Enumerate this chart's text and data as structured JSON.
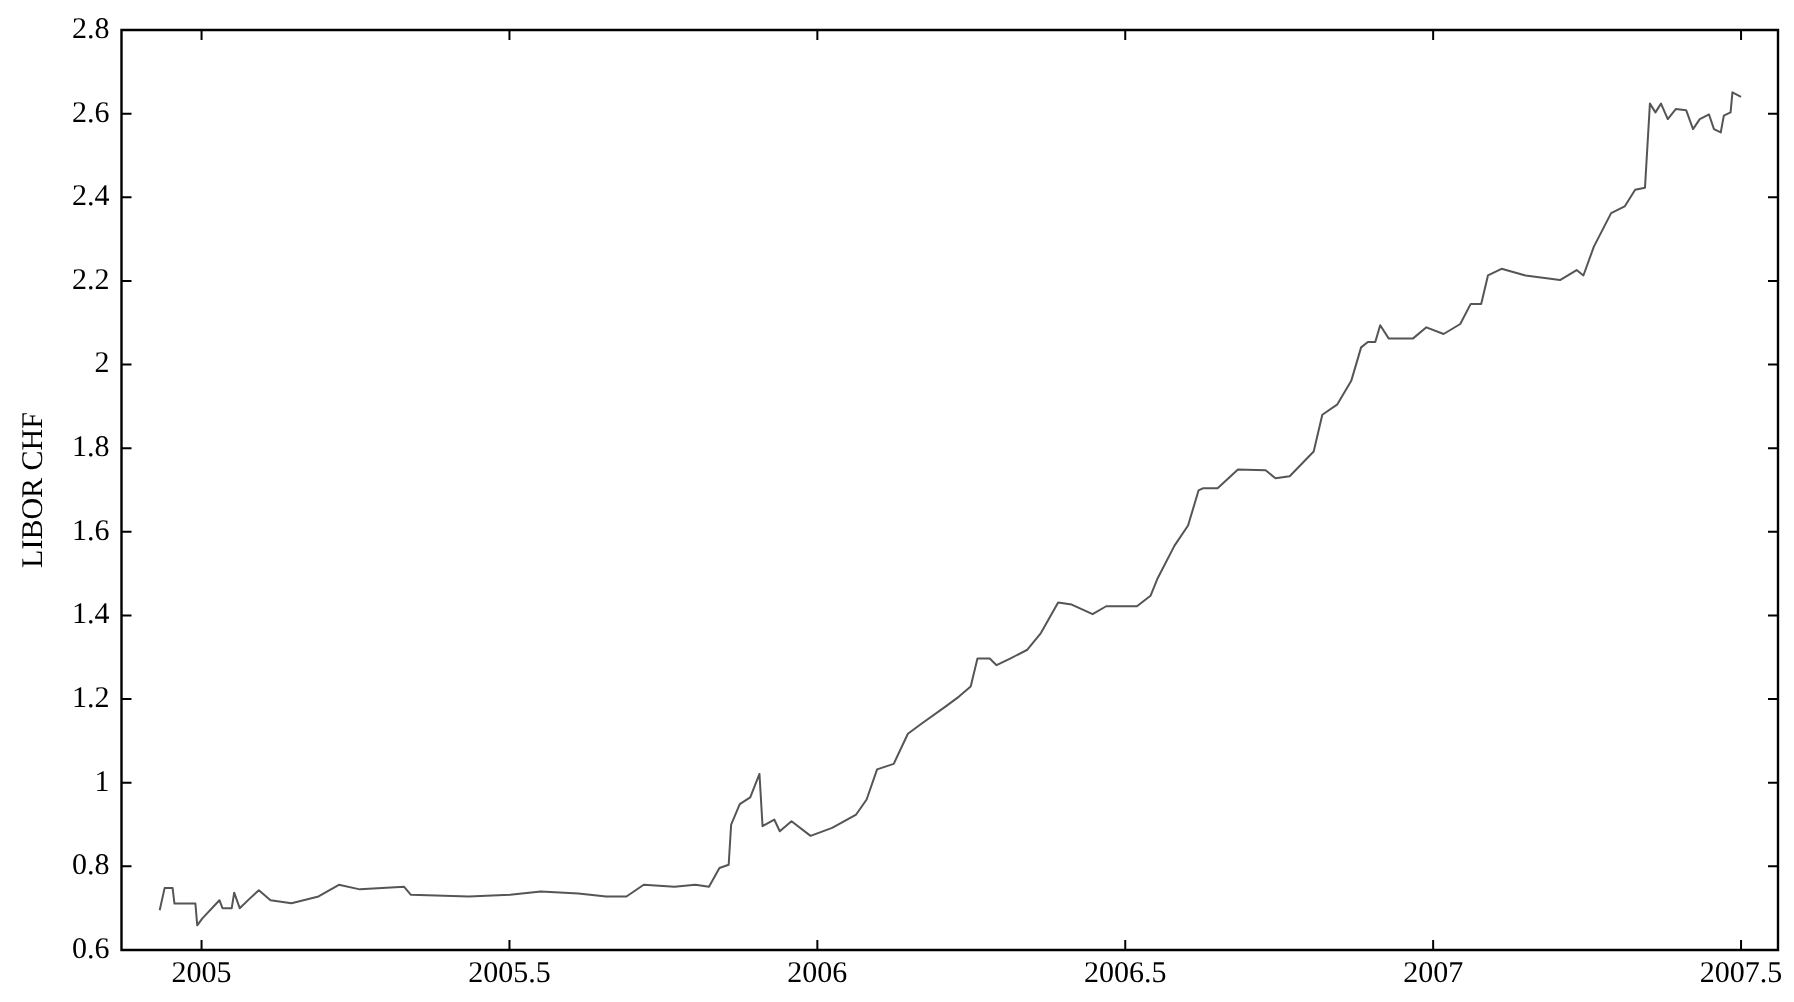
{
  "chart_data": {
    "type": "line",
    "ylabel": "LIBOR CHF",
    "xlim": [
      2004.87,
      2007.56
    ],
    "xticks": [
      2005,
      2005.5,
      2006,
      2006.5,
      2007,
      2007.5
    ],
    "ylim": [
      0.6,
      2.8
    ],
    "yticks": [
      0.6,
      0.8,
      1,
      1.2,
      1.4,
      1.6,
      1.8,
      2,
      2.2,
      2.4,
      2.6,
      2.8
    ],
    "grid": false,
    "legend": false,
    "marker": "none",
    "line_style": "solid",
    "series": [
      {
        "color": "#555555",
        "x": [
          2004.932,
          2004.94,
          2004.953,
          2004.956,
          2004.99,
          2004.993,
          2005.001,
          2005.029,
          2005.034,
          2005.049,
          2005.053,
          2005.062,
          2005.079,
          2005.093,
          2005.112,
          2005.146,
          2005.19,
          2005.223,
          2005.257,
          2005.329,
          2005.34,
          2005.434,
          2005.501,
          2005.551,
          2005.612,
          2005.657,
          2005.69,
          2005.718,
          2005.768,
          2005.802,
          2005.824,
          2005.841,
          2005.856,
          2005.86,
          2005.874,
          2005.891,
          2005.906,
          2005.911,
          2005.93,
          2005.939,
          2005.958,
          2005.989,
          2006.024,
          2006.063,
          2006.08,
          2006.097,
          2006.124,
          2006.147,
          2006.169,
          2006.208,
          2006.23,
          2006.249,
          2006.26,
          2006.28,
          2006.291,
          2006.313,
          2006.341,
          2006.363,
          2006.391,
          2006.413,
          2006.447,
          2006.469,
          2006.519,
          2006.541,
          2006.552,
          2006.58,
          2006.602,
          2006.619,
          2006.626,
          2006.65,
          2006.683,
          2006.728,
          2006.744,
          2006.767,
          2006.806,
          2006.82,
          2006.844,
          2006.867,
          2006.883,
          2006.894,
          2006.906,
          2006.914,
          2006.928,
          2006.967,
          2006.989,
          2007.017,
          2007.044,
          2007.061,
          2007.078,
          2007.089,
          2007.111,
          2007.15,
          2007.206,
          2007.233,
          2007.244,
          2007.261,
          2007.289,
          2007.311,
          2007.328,
          2007.344,
          2007.352,
          2007.361,
          2007.37,
          2007.381,
          2007.394,
          2007.411,
          2007.422,
          2007.433,
          2007.448,
          2007.456,
          2007.467,
          2007.472,
          2007.483,
          2007.486,
          2007.5
        ],
        "values": [
          0.695,
          0.748,
          0.748,
          0.711,
          0.711,
          0.659,
          0.675,
          0.719,
          0.7,
          0.7,
          0.737,
          0.7,
          0.724,
          0.743,
          0.719,
          0.712,
          0.728,
          0.756,
          0.745,
          0.751,
          0.732,
          0.728,
          0.732,
          0.74,
          0.735,
          0.728,
          0.728,
          0.756,
          0.751,
          0.756,
          0.751,
          0.796,
          0.804,
          0.9,
          0.949,
          0.965,
          1.021,
          0.896,
          0.912,
          0.884,
          0.908,
          0.873,
          0.892,
          0.924,
          0.96,
          1.032,
          1.045,
          1.117,
          1.141,
          1.182,
          1.206,
          1.23,
          1.297,
          1.297,
          1.281,
          1.297,
          1.318,
          1.358,
          1.431,
          1.426,
          1.403,
          1.422,
          1.422,
          1.447,
          1.487,
          1.567,
          1.615,
          1.699,
          1.704,
          1.704,
          1.749,
          1.747,
          1.728,
          1.733,
          1.792,
          1.88,
          1.904,
          1.961,
          2.041,
          2.054,
          2.054,
          2.094,
          2.062,
          2.062,
          2.089,
          2.073,
          2.097,
          2.145,
          2.145,
          2.213,
          2.229,
          2.213,
          2.202,
          2.226,
          2.213,
          2.282,
          2.362,
          2.378,
          2.418,
          2.423,
          2.624,
          2.603,
          2.624,
          2.587,
          2.611,
          2.608,
          2.563,
          2.587,
          2.598,
          2.563,
          2.555,
          2.595,
          2.603,
          2.651,
          2.64
        ]
      }
    ]
  }
}
